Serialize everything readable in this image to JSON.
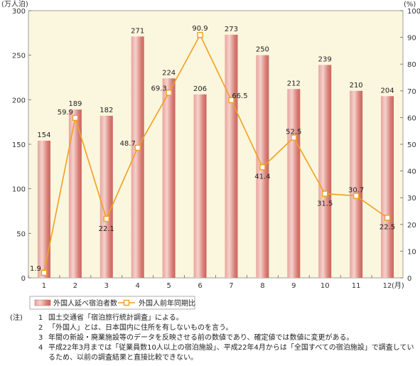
{
  "chart_data": {
    "type": "bar+line",
    "categories": [
      "1",
      "2",
      "3",
      "4",
      "5",
      "6",
      "7",
      "8",
      "9",
      "10",
      "11",
      "12"
    ],
    "x_unit": "(月)",
    "series": [
      {
        "name": "外国人延べ宿泊者数",
        "type": "bar",
        "axis": "left",
        "values": [
          154,
          189,
          182,
          271,
          224,
          206,
          273,
          250,
          212,
          239,
          210,
          204
        ],
        "labels": [
          "154",
          "189",
          "182",
          "271",
          "224",
          "206",
          "273",
          "250",
          "212",
          "239",
          "210",
          "204"
        ]
      },
      {
        "name": "外国人前年同期比",
        "type": "line",
        "axis": "right",
        "values": [
          1.9,
          59.9,
          22.1,
          48.7,
          69.3,
          90.9,
          66.5,
          41.4,
          52.5,
          31.5,
          30.7,
          22.5
        ],
        "labels": [
          "1.9",
          "59.9",
          "22.1",
          "48.7",
          "69.3",
          "90.9",
          "66.5",
          "41.4",
          "52.5",
          "31.5",
          "30.7",
          "22.5"
        ]
      }
    ],
    "y_left": {
      "unit": "(万人泊)",
      "ylim": [
        0,
        300
      ],
      "ticks": [
        "0",
        "50",
        "100",
        "150",
        "200",
        "250",
        "300"
      ]
    },
    "y_right": {
      "unit": "(%)",
      "ylim": [
        0,
        100
      ],
      "ticks": [
        "0",
        "10",
        "20",
        "30",
        "40",
        "50",
        "60",
        "70",
        "80",
        "90",
        "100"
      ]
    },
    "colors": {
      "bar": "#d9807a",
      "bar_light": "#f3c9c2",
      "line": "#f0a020",
      "plot_bg": "#fbf6de"
    },
    "grid": false,
    "legend": "bottom"
  },
  "notes": {
    "head": "(注)",
    "items": [
      {
        "num": "1",
        "text": "国土交通省「宿泊旅行統計調査」による。"
      },
      {
        "num": "2",
        "text": "「外国人」とは、日本国内に住所を有しないものを言う。"
      },
      {
        "num": "3",
        "text": "年間の新設・廃業施設等のデータを反映させる前の数値であり、確定値では数値に変更がある。"
      },
      {
        "num": "4",
        "text": "平成22年3月までは「従業員数10人以上の宿泊施設」、平成22年4月からは「全国すべての宿泊施設」で調査しているため、以前の調査結果と直接比較できない。"
      }
    ]
  }
}
